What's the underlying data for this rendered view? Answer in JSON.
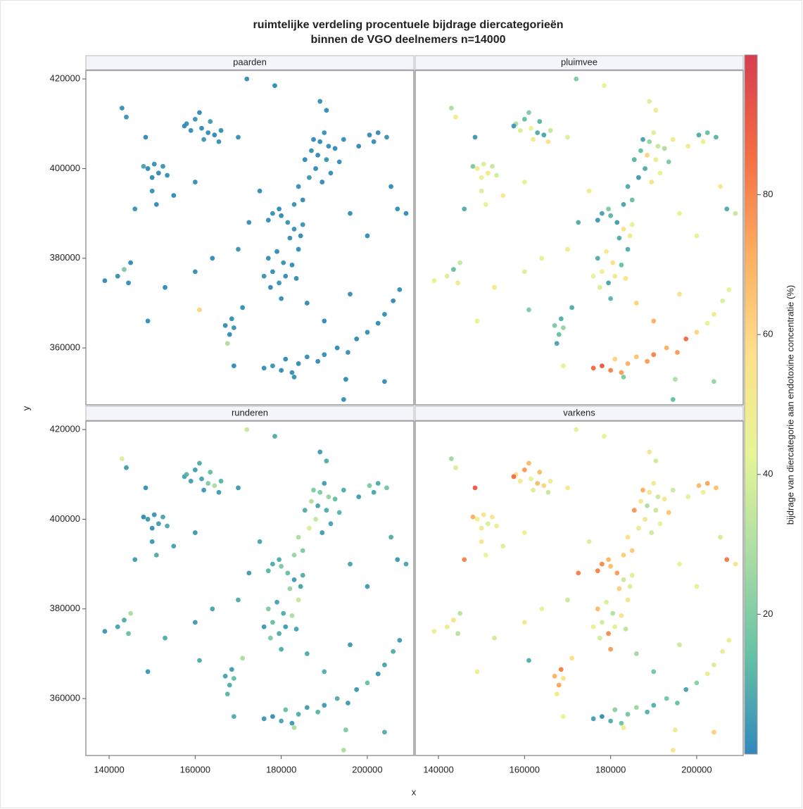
{
  "chart_data": {
    "type": "scatter",
    "title": "ruimtelijke verdeling procentuele bijdrage diercategorieën",
    "subtitle": "binnen de VGO deelnemers n=14000",
    "x_label": "x",
    "y_label": "y",
    "colorbar_label": "bijdrage van diercategorie aan endotoxine concentratie (%)",
    "xlim": [
      134600,
      210800
    ],
    "xticks": [
      140000,
      160000,
      180000,
      200000
    ],
    "ylim": [
      347300,
      421900
    ],
    "yticks": [
      360000,
      380000,
      400000,
      420000
    ],
    "clim": [
      0,
      100
    ],
    "cticks": [
      20,
      40,
      60,
      80
    ],
    "colormap": [
      "#3288bd",
      "#66c2a5",
      "#abdda4",
      "#e6f598",
      "#fee08b",
      "#fdae61",
      "#f46d43",
      "#d53e4f"
    ],
    "x": [
      158000,
      160000,
      161500,
      163000,
      162000,
      164500,
      159000,
      165500,
      161000,
      163500,
      157500,
      166000,
      149000,
      150500,
      151500,
      152500,
      150000,
      153500,
      148000,
      143000,
      144000,
      148500,
      150000,
      151000,
      146000,
      155000,
      160000,
      187000,
      189000,
      190500,
      188000,
      191500,
      192500,
      186500,
      189500,
      193500,
      190000,
      187500,
      194500,
      188500,
      191000,
      185500,
      189000,
      190500,
      200500,
      202500,
      204500,
      201500,
      198000,
      184000,
      185000,
      183000,
      178000,
      180000,
      181500,
      183000,
      184500,
      182000,
      179500,
      185000,
      177000,
      177000,
      179000,
      180500,
      178000,
      181000,
      182500,
      179500,
      177500,
      183500,
      184000,
      176000,
      180000,
      167000,
      168000,
      167500,
      169000,
      168500,
      139000,
      142000,
      143500,
      144500,
      145000,
      176000,
      178000,
      180000,
      182500,
      184000,
      186000,
      188500,
      183000,
      181000,
      190000,
      193000,
      195500,
      197500,
      200000,
      202500,
      204000,
      206000,
      207500,
      195000,
      204000,
      172000,
      178500,
      170000,
      175000,
      172500,
      170000,
      164000,
      160000,
      153000,
      149000,
      161000,
      171000,
      186000,
      196000,
      205500,
      207000,
      209000,
      200000,
      190000,
      194500,
      169000,
      196000
    ],
    "y": [
      410000,
      411000,
      409000,
      408000,
      406500,
      407500,
      408500,
      406000,
      412500,
      410500,
      409500,
      408500,
      400000,
      401000,
      399000,
      400500,
      398000,
      398500,
      400500,
      413500,
      411500,
      407000,
      395000,
      392000,
      391000,
      394000,
      397000,
      404000,
      406000,
      402000,
      400000,
      399000,
      404500,
      398000,
      397000,
      401500,
      408000,
      406500,
      406500,
      403000,
      405000,
      402000,
      415000,
      413000,
      407500,
      408000,
      407000,
      406000,
      405000,
      396000,
      393000,
      392000,
      390000,
      389500,
      388000,
      386500,
      385000,
      384500,
      391000,
      387500,
      388500,
      380000,
      381500,
      379000,
      377000,
      376000,
      378500,
      374500,
      373500,
      375500,
      382000,
      376000,
      371000,
      365000,
      363000,
      361000,
      364500,
      366500,
      375000,
      376000,
      377500,
      374500,
      379000,
      355500,
      356000,
      355000,
      354500,
      356500,
      358000,
      357000,
      353500,
      357500,
      358500,
      360000,
      359000,
      362000,
      363500,
      365500,
      367500,
      370500,
      373000,
      353000,
      352500,
      420000,
      418500,
      407000,
      395000,
      388000,
      382000,
      380000,
      377000,
      373500,
      366000,
      368500,
      369000,
      370000,
      390000,
      396000,
      391000,
      390000,
      385000,
      366000,
      348500,
      356000,
      372000
    ],
    "facets": [
      {
        "name": "paarden",
        "values": [
          3,
          4,
          2,
          3,
          5,
          2,
          3,
          4,
          2,
          6,
          2,
          3,
          2,
          3,
          2,
          4,
          2,
          3,
          8,
          3,
          4,
          2,
          3,
          2,
          4,
          2,
          3,
          3,
          2,
          4,
          2,
          3,
          2,
          5,
          2,
          3,
          4,
          2,
          3,
          2,
          3,
          2,
          3,
          2,
          3,
          2,
          4,
          3,
          2,
          3,
          2,
          4,
          3,
          2,
          4,
          3,
          2,
          3,
          2,
          4,
          3,
          3,
          2,
          4,
          2,
          3,
          2,
          4,
          2,
          3,
          2,
          4,
          3,
          3,
          2,
          30,
          4,
          3,
          2,
          3,
          20,
          3,
          2,
          3,
          4,
          2,
          3,
          2,
          3,
          2,
          4,
          2,
          3,
          2,
          4,
          2,
          3,
          2,
          3,
          2,
          3,
          2,
          3,
          3,
          2,
          3,
          2,
          3,
          4,
          2,
          3,
          2,
          3,
          60,
          3,
          2,
          3,
          2,
          3,
          2,
          3,
          2,
          3,
          2,
          3
        ]
      },
      {
        "name": "pluimvee",
        "values": [
          30,
          15,
          45,
          10,
          50,
          8,
          40,
          55,
          20,
          12,
          5,
          35,
          48,
          40,
          52,
          35,
          45,
          38,
          20,
          30,
          50,
          5,
          40,
          45,
          10,
          50,
          45,
          15,
          25,
          50,
          10,
          45,
          30,
          5,
          55,
          20,
          40,
          8,
          50,
          60,
          35,
          12,
          40,
          50,
          10,
          15,
          12,
          45,
          50,
          10,
          15,
          8,
          8,
          12,
          6,
          55,
          50,
          10,
          20,
          45,
          5,
          10,
          50,
          55,
          45,
          50,
          15,
          8,
          40,
          55,
          10,
          45,
          12,
          20,
          15,
          8,
          25,
          10,
          45,
          40,
          15,
          50,
          35,
          85,
          90,
          80,
          75,
          70,
          65,
          75,
          20,
          60,
          80,
          70,
          75,
          85,
          60,
          45,
          50,
          40,
          45,
          30,
          25,
          20,
          45,
          40,
          50,
          10,
          50,
          45,
          40,
          50,
          45,
          20,
          10,
          60,
          45,
          50,
          10,
          35,
          45,
          70,
          15,
          45,
          55
        ]
      },
      {
        "name": "runderen",
        "values": [
          12,
          6,
          8,
          20,
          5,
          30,
          7,
          6,
          10,
          15,
          8,
          12,
          5,
          4,
          6,
          8,
          3,
          9,
          2,
          40,
          6,
          3,
          5,
          10,
          6,
          8,
          5,
          30,
          20,
          10,
          35,
          8,
          15,
          40,
          6,
          12,
          6,
          20,
          10,
          8,
          25,
          10,
          6,
          10,
          20,
          10,
          18,
          8,
          6,
          30,
          20,
          25,
          10,
          20,
          15,
          6,
          8,
          25,
          10,
          10,
          12,
          20,
          8,
          10,
          15,
          6,
          30,
          10,
          20,
          8,
          35,
          5,
          10,
          8,
          10,
          12,
          15,
          6,
          5,
          8,
          10,
          15,
          30,
          5,
          3,
          8,
          5,
          10,
          6,
          12,
          30,
          15,
          6,
          10,
          5,
          5,
          15,
          5,
          8,
          10,
          6,
          20,
          10,
          35,
          10,
          5,
          8,
          6,
          10,
          8,
          5,
          10,
          5,
          10,
          30,
          10,
          8,
          10,
          5,
          8,
          6,
          10,
          30,
          10,
          5
        ]
      },
      {
        "name": "varkens",
        "values": [
          55,
          75,
          45,
          67,
          40,
          60,
          50,
          35,
          68,
          67,
          85,
          50,
          45,
          53,
          40,
          53,
          50,
          50,
          70,
          27,
          40,
          90,
          52,
          43,
          80,
          40,
          47,
          52,
          53,
          36,
          53,
          44,
          53,
          50,
          37,
          65,
          50,
          70,
          37,
          30,
          37,
          76,
          51,
          38,
          67,
          73,
          66,
          44,
          42,
          57,
          63,
          63,
          79,
          66,
          75,
          36,
          40,
          62,
          68,
          41,
          80,
          67,
          40,
          31,
          38,
          41,
          53,
          78,
          38,
          34,
          53,
          46,
          75,
          69,
          73,
          50,
          56,
          81,
          48,
          49,
          55,
          32,
          33,
          7,
          3,
          10,
          17,
          18,
          26,
          11,
          46,
          23,
          11,
          18,
          16,
          8,
          22,
          48,
          39,
          48,
          46,
          48,
          62,
          42,
          43,
          52,
          40,
          81,
          36,
          45,
          52,
          38,
          47,
          10,
          57,
          28,
          44,
          38,
          82,
          55,
          46,
          18,
          52,
          43,
          37
        ]
      }
    ]
  }
}
